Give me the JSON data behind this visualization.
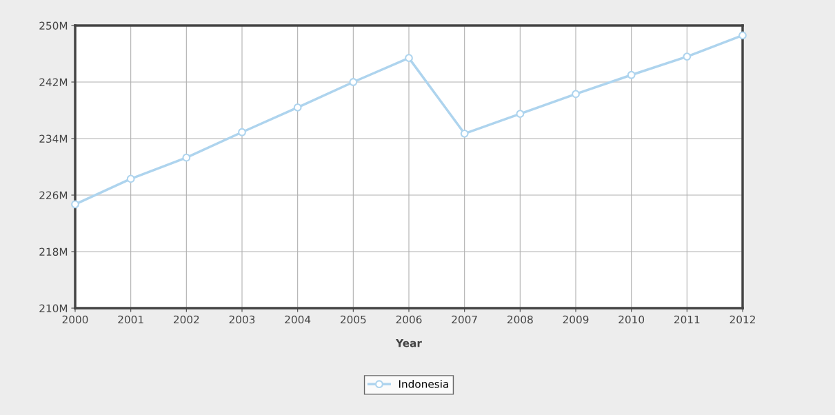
{
  "chart_data": {
    "type": "line",
    "xlabel": "Year",
    "x": [
      2000,
      2001,
      2002,
      2003,
      2004,
      2005,
      2006,
      2007,
      2008,
      2009,
      2010,
      2011,
      2012
    ],
    "series": [
      {
        "name": "Indonesia",
        "color": "#aed4ee",
        "values": [
          224.7,
          228.3,
          231.3,
          234.9,
          238.4,
          242.0,
          245.4,
          234.7,
          237.5,
          240.3,
          243.0,
          245.6,
          248.6
        ]
      }
    ],
    "xlim": [
      2000,
      2012
    ],
    "xticks": [
      2000,
      2001,
      2002,
      2003,
      2004,
      2005,
      2006,
      2007,
      2008,
      2009,
      2010,
      2011,
      2012
    ],
    "ylim": [
      210,
      250
    ],
    "yticks": [
      {
        "value": 210,
        "label": "210M"
      },
      {
        "value": 218,
        "label": "218M"
      },
      {
        "value": 226,
        "label": "226M"
      },
      {
        "value": 234,
        "label": "234M"
      },
      {
        "value": 242,
        "label": "242M"
      },
      {
        "value": 250,
        "label": "250M"
      }
    ],
    "grid": true,
    "legend": "bottom",
    "marker": "circle",
    "line_style": "solid"
  }
}
